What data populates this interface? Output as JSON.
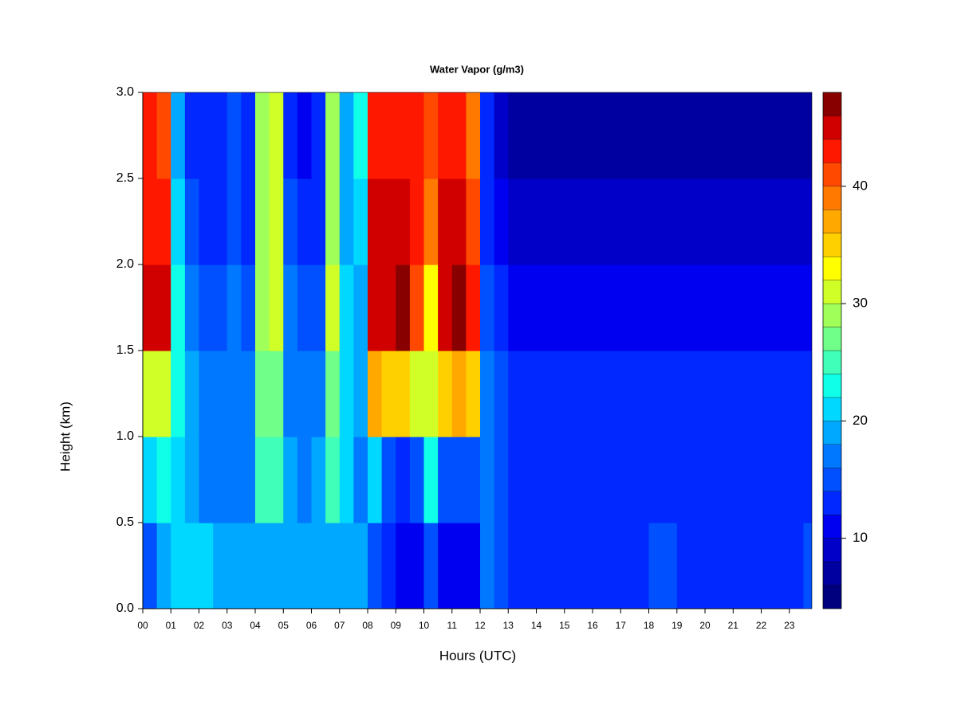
{
  "chart_data": {
    "type": "heatmap",
    "title": "Water Vapor (g/m3)",
    "x_label": "Hours (UTC)",
    "y_label": "Height (km)",
    "xlim": [
      0,
      23.8
    ],
    "ylim": [
      0,
      3
    ],
    "xticks": [
      {
        "value": 0,
        "label": "00"
      },
      {
        "value": 1,
        "label": "01"
      },
      {
        "value": 2,
        "label": "02"
      },
      {
        "value": 3,
        "label": "03"
      },
      {
        "value": 4,
        "label": "04"
      },
      {
        "value": 5,
        "label": "05"
      },
      {
        "value": 6,
        "label": "06"
      },
      {
        "value": 7,
        "label": "07"
      },
      {
        "value": 8,
        "label": "08"
      },
      {
        "value": 9,
        "label": "09"
      },
      {
        "value": 10,
        "label": "10"
      },
      {
        "value": 11,
        "label": "11"
      },
      {
        "value": 12,
        "label": "12"
      },
      {
        "value": 13,
        "label": "13"
      },
      {
        "value": 14,
        "label": "14"
      },
      {
        "value": 15,
        "label": "15"
      },
      {
        "value": 16,
        "label": "16"
      },
      {
        "value": 17,
        "label": "17"
      },
      {
        "value": 18,
        "label": "18"
      },
      {
        "value": 19,
        "label": "19"
      },
      {
        "value": 20,
        "label": "20"
      },
      {
        "value": 21,
        "label": "21"
      },
      {
        "value": 22,
        "label": "22"
      },
      {
        "value": 23,
        "label": "23"
      }
    ],
    "yticks": [
      {
        "value": 0,
        "label": "0.0"
      },
      {
        "value": 0.5,
        "label": "0.5"
      },
      {
        "value": 1,
        "label": "1.0"
      },
      {
        "value": 1.5,
        "label": "1.5"
      },
      {
        "value": 2,
        "label": "2.0"
      },
      {
        "value": 2.5,
        "label": "2.5"
      },
      {
        "value": 3,
        "label": "3.0"
      }
    ],
    "x": [
      0.25,
      0.75,
      1.25,
      1.75,
      2.25,
      2.75,
      3.25,
      3.75,
      4.25,
      4.75,
      5.25,
      5.75,
      6.25,
      6.75,
      7.25,
      7.75,
      8.25,
      8.75,
      9.25,
      9.75,
      10.25,
      10.75,
      11.25,
      11.75,
      12.25,
      12.75,
      13.25,
      13.75,
      14.25,
      14.75,
      15.25,
      15.75,
      16.25,
      16.75,
      17.25,
      17.75,
      18.25,
      18.75,
      19.25,
      19.75,
      20.25,
      20.75,
      21.25,
      21.75,
      22.25,
      22.75,
      23.25,
      23.75
    ],
    "y": [
      0.25,
      0.75,
      1.25,
      1.75,
      2.25,
      2.75
    ],
    "z": [
      [
        14,
        18,
        20,
        20,
        20,
        19,
        19,
        19,
        18,
        19,
        19,
        19,
        19,
        19,
        19,
        18,
        14,
        12,
        10,
        11,
        14,
        10,
        10,
        11,
        16,
        14,
        13,
        13,
        13,
        13,
        13,
        13,
        13,
        13,
        13,
        13,
        14,
        14,
        13,
        13,
        13,
        13,
        13,
        13,
        13,
        13,
        13,
        14
      ],
      [
        20,
        22,
        20,
        18,
        16,
        16,
        17,
        17,
        24,
        24,
        18,
        17,
        18,
        24,
        20,
        17,
        20,
        14,
        12,
        14,
        22,
        14,
        14,
        15,
        16,
        15,
        13,
        13,
        13,
        13,
        12,
        13,
        13,
        12,
        13,
        13,
        13,
        12,
        13,
        13,
        12,
        13,
        13,
        12,
        13,
        13,
        12,
        13
      ],
      [
        30,
        30,
        22,
        18,
        16,
        16,
        17,
        16,
        26,
        26,
        17,
        16,
        17,
        26,
        20,
        18,
        36,
        34,
        34,
        30,
        30,
        34,
        36,
        34,
        16,
        14,
        12,
        12,
        12,
        12,
        12,
        12,
        12,
        12,
        12,
        12,
        12,
        12,
        12,
        12,
        12,
        12,
        12,
        12,
        12,
        12,
        12,
        12
      ],
      [
        44,
        44,
        22,
        16,
        14,
        15,
        16,
        15,
        28,
        30,
        16,
        14,
        15,
        30,
        20,
        18,
        44,
        44,
        46,
        40,
        32,
        44,
        46,
        42,
        15,
        13,
        11,
        11,
        11,
        11,
        11,
        11,
        11,
        11,
        11,
        11,
        11,
        11,
        11,
        11,
        11,
        11,
        11,
        11,
        11,
        11,
        11,
        11
      ],
      [
        42,
        42,
        20,
        14,
        13,
        13,
        15,
        13,
        28,
        30,
        14,
        12,
        13,
        28,
        18,
        20,
        44,
        44,
        44,
        42,
        38,
        44,
        44,
        40,
        13,
        11,
        9,
        9,
        9,
        9,
        9,
        9,
        9,
        9,
        9,
        9,
        9,
        9,
        9,
        9,
        9,
        9,
        9,
        9,
        9,
        9,
        9,
        9
      ],
      [
        42,
        40,
        18,
        12,
        12,
        12,
        14,
        12,
        28,
        30,
        12,
        11,
        12,
        28,
        18,
        22,
        42,
        42,
        42,
        42,
        40,
        42,
        42,
        38,
        12,
        9,
        7,
        7,
        7,
        7,
        7,
        7,
        7,
        7,
        7,
        7,
        7,
        7,
        7,
        7,
        7,
        7,
        7,
        7,
        7,
        7,
        7,
        7
      ]
    ],
    "levels": [
      4,
      6,
      8,
      10,
      12,
      14,
      16,
      18,
      20,
      22,
      24,
      26,
      28,
      30,
      32,
      34,
      36,
      38,
      40,
      42,
      44,
      46,
      48
    ],
    "colors": [
      "#00007f",
      "#0000a0",
      "#0000c8",
      "#0000f0",
      "#0028ff",
      "#0050ff",
      "#0078ff",
      "#00a8ff",
      "#00d8ff",
      "#10ffe8",
      "#40ffb8",
      "#70ff88",
      "#a0ff58",
      "#d0ff28",
      "#ffff00",
      "#ffd000",
      "#ffa800",
      "#ff7800",
      "#ff4800",
      "#ff1800",
      "#d00000",
      "#880000"
    ],
    "colorbar_ticks": [
      10,
      20,
      30,
      40
    ]
  }
}
